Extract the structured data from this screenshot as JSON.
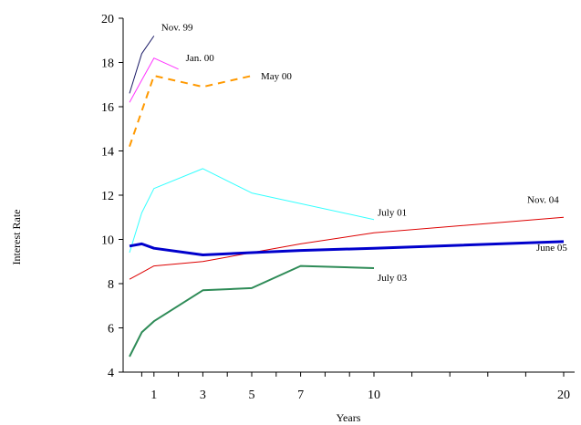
{
  "chart_data": {
    "type": "line",
    "xlabel": "Years",
    "ylabel": "Interest Rate",
    "ylim": [
      4,
      20
    ],
    "y_ticks": [
      4,
      6,
      8,
      10,
      12,
      14,
      16,
      18,
      20
    ],
    "x_ticks": [
      1,
      3,
      5,
      7,
      10,
      20
    ],
    "x_tick_labels": [
      "1",
      "3",
      "5",
      "7",
      "10",
      "20"
    ],
    "grid": false,
    "legend": "none (series labeled inline)",
    "series": [
      {
        "name": "Nov. 99",
        "color": "#1a1a66",
        "style": "thin",
        "x": [
          0.0,
          0.5,
          1.0
        ],
        "y": [
          16.6,
          18.4,
          19.2
        ]
      },
      {
        "name": "Jan. 00",
        "color": "#ff33ff",
        "style": "thin",
        "x": [
          0.0,
          0.5,
          1.0,
          2.0
        ],
        "y": [
          16.2,
          17.2,
          18.2,
          17.7
        ]
      },
      {
        "name": "May 00",
        "color": "#ff9900",
        "style": "dashed",
        "x": [
          0.0,
          0.5,
          1.0,
          3.0,
          5.0
        ],
        "y": [
          14.2,
          15.8,
          17.4,
          16.9,
          17.4
        ]
      },
      {
        "name": "July 01",
        "color": "#33ffff",
        "style": "thin",
        "x": [
          0.0,
          0.5,
          1.0,
          3.0,
          5.0,
          10.0
        ],
        "y": [
          9.4,
          11.2,
          12.3,
          13.2,
          12.1,
          10.9
        ]
      },
      {
        "name": "Nov. 04",
        "color": "#dd0000",
        "style": "thin",
        "x": [
          0.0,
          0.5,
          1.0,
          3.0,
          5.0,
          7.0,
          10.0,
          20.0
        ],
        "y": [
          8.2,
          8.5,
          8.8,
          9.0,
          9.4,
          9.8,
          10.3,
          11.0
        ]
      },
      {
        "name": "June 05",
        "color": "#0000cc",
        "style": "thick",
        "x": [
          0.0,
          0.5,
          1.0,
          3.0,
          5.0,
          7.0,
          10.0,
          20.0
        ],
        "y": [
          9.7,
          9.8,
          9.6,
          9.3,
          9.4,
          9.5,
          9.6,
          9.9
        ]
      },
      {
        "name": "July 03",
        "color": "#2e8b57",
        "style": "medium",
        "x": [
          0.0,
          0.5,
          1.0,
          3.0,
          5.0,
          7.0,
          10.0
        ],
        "y": [
          4.7,
          5.8,
          6.3,
          7.7,
          7.8,
          8.8,
          8.7
        ]
      }
    ]
  }
}
